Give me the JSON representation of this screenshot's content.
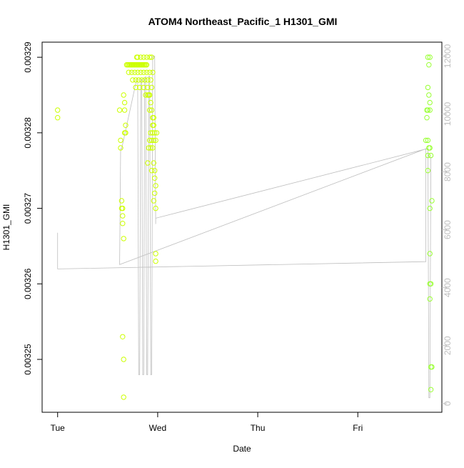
{
  "chart_data": {
    "type": "scatter",
    "title": "ATOM4 Northeast_Pacific_1 H1301_GMI",
    "xlabel": "Date",
    "ylabel": "H1301_GMI",
    "x_tick_labels": [
      "Tue",
      "Wed",
      "Thu",
      "Fri"
    ],
    "x_ticks_days": [
      0,
      1,
      2,
      3
    ],
    "xlim_days": [
      -0.155,
      3.84
    ],
    "y_left": {
      "ticks": [
        0.00325,
        0.00326,
        0.00327,
        0.00328,
        0.00329
      ],
      "tick_labels": [
        "0.00325",
        "0.00326",
        "0.00327",
        "0.00328",
        "0.00329"
      ],
      "lim": [
        0.003243,
        0.003292
      ]
    },
    "y_right": {
      "ticks": [
        0,
        2000,
        4000,
        6000,
        8000,
        10000,
        12000
      ],
      "tick_labels": [
        "0",
        "2000",
        "4000",
        "6000",
        "8000",
        "10000",
        "12000"
      ],
      "lim": [
        -300,
        12480
      ]
    },
    "colors": {
      "points_early": "#ccff00",
      "points_late": "#99ff33",
      "altitude_line": "#bebebe",
      "axis": "#000000",
      "right_axis": "#bebebe"
    },
    "series": [
      {
        "values": [
          [
            0.0,
            0.003283
          ],
          [
            0.0,
            0.003282
          ],
          [
            0.62,
            0.003283
          ],
          [
            0.63,
            0.003279
          ],
          [
            0.63,
            0.003278
          ],
          [
            0.64,
            0.003271
          ],
          [
            0.64,
            0.00327
          ],
          [
            0.65,
            0.00327
          ],
          [
            0.65,
            0.003269
          ],
          [
            0.65,
            0.003268
          ],
          [
            0.66,
            0.003266
          ],
          [
            0.65,
            0.003253
          ],
          [
            0.66,
            0.00325
          ],
          [
            0.66,
            0.003245
          ],
          [
            0.66,
            0.003285
          ],
          [
            0.67,
            0.003284
          ],
          [
            0.67,
            0.003283
          ],
          [
            0.68,
            0.003281
          ],
          [
            0.68,
            0.00328
          ],
          [
            0.67,
            0.00328
          ],
          [
            0.69,
            0.003289
          ],
          [
            0.7,
            0.003289
          ],
          [
            0.71,
            0.003289
          ],
          [
            0.72,
            0.003289
          ],
          [
            0.73,
            0.003289
          ],
          [
            0.74,
            0.003289
          ],
          [
            0.75,
            0.003289
          ],
          [
            0.76,
            0.003289
          ],
          [
            0.77,
            0.003289
          ],
          [
            0.78,
            0.003289
          ],
          [
            0.79,
            0.003289
          ],
          [
            0.8,
            0.003289
          ],
          [
            0.81,
            0.003289
          ],
          [
            0.82,
            0.003289
          ],
          [
            0.83,
            0.003289
          ],
          [
            0.84,
            0.003289
          ],
          [
            0.85,
            0.003289
          ],
          [
            0.86,
            0.003289
          ],
          [
            0.87,
            0.003289
          ],
          [
            0.88,
            0.003289
          ],
          [
            0.89,
            0.003289
          ],
          [
            0.79,
            0.00329
          ],
          [
            0.8,
            0.00329
          ],
          [
            0.83,
            0.00329
          ],
          [
            0.86,
            0.00329
          ],
          [
            0.89,
            0.00329
          ],
          [
            0.92,
            0.00329
          ],
          [
            0.94,
            0.00329
          ],
          [
            0.71,
            0.003288
          ],
          [
            0.74,
            0.003288
          ],
          [
            0.77,
            0.003288
          ],
          [
            0.8,
            0.003288
          ],
          [
            0.83,
            0.003288
          ],
          [
            0.86,
            0.003288
          ],
          [
            0.89,
            0.003288
          ],
          [
            0.92,
            0.003288
          ],
          [
            0.95,
            0.003288
          ],
          [
            0.75,
            0.003287
          ],
          [
            0.78,
            0.003287
          ],
          [
            0.81,
            0.003287
          ],
          [
            0.84,
            0.003287
          ],
          [
            0.87,
            0.003287
          ],
          [
            0.9,
            0.003287
          ],
          [
            0.93,
            0.003287
          ],
          [
            0.78,
            0.003286
          ],
          [
            0.82,
            0.003286
          ],
          [
            0.86,
            0.003286
          ],
          [
            0.9,
            0.003286
          ],
          [
            0.94,
            0.003286
          ],
          [
            0.88,
            0.003285
          ],
          [
            0.9,
            0.003285
          ],
          [
            0.91,
            0.003285
          ],
          [
            0.92,
            0.003285
          ],
          [
            0.93,
            0.003284
          ],
          [
            0.92,
            0.003283
          ],
          [
            0.94,
            0.003283
          ],
          [
            0.95,
            0.003282
          ],
          [
            0.96,
            0.003282
          ],
          [
            0.95,
            0.003281
          ],
          [
            0.96,
            0.003281
          ],
          [
            0.93,
            0.00328
          ],
          [
            0.95,
            0.00328
          ],
          [
            0.97,
            0.00328
          ],
          [
            0.99,
            0.00328
          ],
          [
            0.92,
            0.003279
          ],
          [
            0.94,
            0.003279
          ],
          [
            0.96,
            0.003279
          ],
          [
            0.98,
            0.003279
          ],
          [
            0.91,
            0.003278
          ],
          [
            0.93,
            0.003278
          ],
          [
            0.95,
            0.003278
          ],
          [
            0.96,
            0.003276
          ],
          [
            0.97,
            0.003275
          ],
          [
            0.9,
            0.003276
          ],
          [
            0.94,
            0.003275
          ],
          [
            0.97,
            0.003274
          ],
          [
            0.98,
            0.003273
          ],
          [
            0.97,
            0.003272
          ],
          [
            0.96,
            0.003271
          ],
          [
            0.98,
            0.00327
          ],
          [
            0.98,
            0.003264
          ],
          [
            0.98,
            0.003263
          ]
        ]
      },
      {
        "values": [
          [
            3.7,
            0.00329
          ],
          [
            3.72,
            0.00329
          ],
          [
            3.71,
            0.003289
          ],
          [
            3.7,
            0.003286
          ],
          [
            3.71,
            0.003285
          ],
          [
            3.72,
            0.003284
          ],
          [
            3.69,
            0.003283
          ],
          [
            3.7,
            0.003283
          ],
          [
            3.72,
            0.003283
          ],
          [
            3.69,
            0.003282
          ],
          [
            3.68,
            0.003279
          ],
          [
            3.7,
            0.003279
          ],
          [
            3.71,
            0.003278
          ],
          [
            3.72,
            0.003278
          ],
          [
            3.7,
            0.003277
          ],
          [
            3.73,
            0.003277
          ],
          [
            3.7,
            0.003275
          ],
          [
            3.74,
            0.003271
          ],
          [
            3.72,
            0.00327
          ],
          [
            3.72,
            0.003264
          ],
          [
            3.73,
            0.00326
          ],
          [
            3.72,
            0.00326
          ],
          [
            3.72,
            0.003258
          ],
          [
            3.73,
            0.003249
          ],
          [
            3.74,
            0.003249
          ],
          [
            3.73,
            0.003246
          ]
        ]
      },
      {
        "values": [
          [
            0.0,
            5900
          ],
          [
            0.0,
            4650
          ],
          [
            3.68,
            4900
          ],
          [
            3.68,
            8800
          ],
          [
            0.62,
            4800
          ],
          [
            0.63,
            8800
          ],
          [
            0.64,
            8800
          ],
          [
            0.79,
            11200
          ],
          [
            0.8,
            11200
          ],
          [
            0.81,
            1000
          ],
          [
            0.82,
            1000
          ],
          [
            0.83,
            11200
          ],
          [
            0.84,
            11200
          ],
          [
            0.85,
            1000
          ],
          [
            0.86,
            1000
          ],
          [
            0.87,
            11200
          ],
          [
            0.88,
            11300
          ],
          [
            0.89,
            1000
          ],
          [
            0.9,
            1000
          ],
          [
            0.91,
            11300
          ],
          [
            0.92,
            11300
          ],
          [
            0.93,
            1000
          ],
          [
            0.94,
            1000
          ],
          [
            0.95,
            12000
          ],
          [
            0.96,
            12000
          ],
          [
            0.97,
            12000
          ],
          [
            0.98,
            6200
          ],
          [
            0.98,
            6400
          ],
          [
            3.69,
            8800
          ],
          [
            3.7,
            8800
          ],
          [
            3.71,
            200
          ],
          [
            3.72,
            200
          ],
          [
            3.73,
            8500
          ],
          [
            3.74,
            8500
          ]
        ]
      }
    ]
  }
}
